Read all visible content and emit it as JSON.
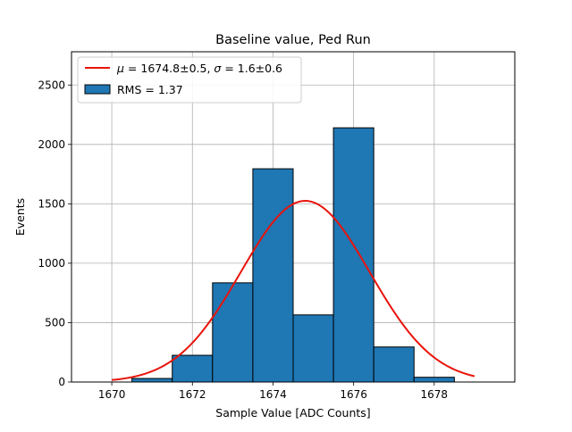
{
  "chart_data": {
    "type": "histogram",
    "title": "Baseline value, Ped Run",
    "xlabel": "Sample Value [ADC Counts]",
    "ylabel": "Events",
    "xlim": [
      1669.0,
      1680.0
    ],
    "ylim": [
      0,
      2780
    ],
    "xticks": [
      1670,
      1672,
      1674,
      1676,
      1678
    ],
    "yticks": [
      0,
      500,
      1000,
      1500,
      2000,
      2500
    ],
    "grid": true,
    "legend_location": "top-left",
    "bin_edges": [
      1669.5,
      1670.5,
      1671.5,
      1672.5,
      1673.5,
      1674.5,
      1675.5,
      1676.5,
      1677.5,
      1678.5
    ],
    "counts": [
      0,
      30,
      225,
      835,
      1795,
      565,
      2140,
      295,
      40
    ],
    "bar_color": "#1f77b4",
    "bar_edge_color": "#000000",
    "histogram_label": "RMS = 1.37",
    "fit": {
      "function": "gaussian",
      "mu": 1674.8,
      "sigma": 1.6,
      "amplitude": 1525,
      "x_range": [
        1670.0,
        1679.0
      ],
      "color": "#e8140c",
      "label": "μ = 1674.8±0.5, σ = 1.6±0.6",
      "label_mu_part": "μ",
      "label_mu_value": " = 1674.8±0.5, ",
      "label_sigma_part": "σ",
      "label_sigma_value": " = 1.6±0.6"
    }
  }
}
